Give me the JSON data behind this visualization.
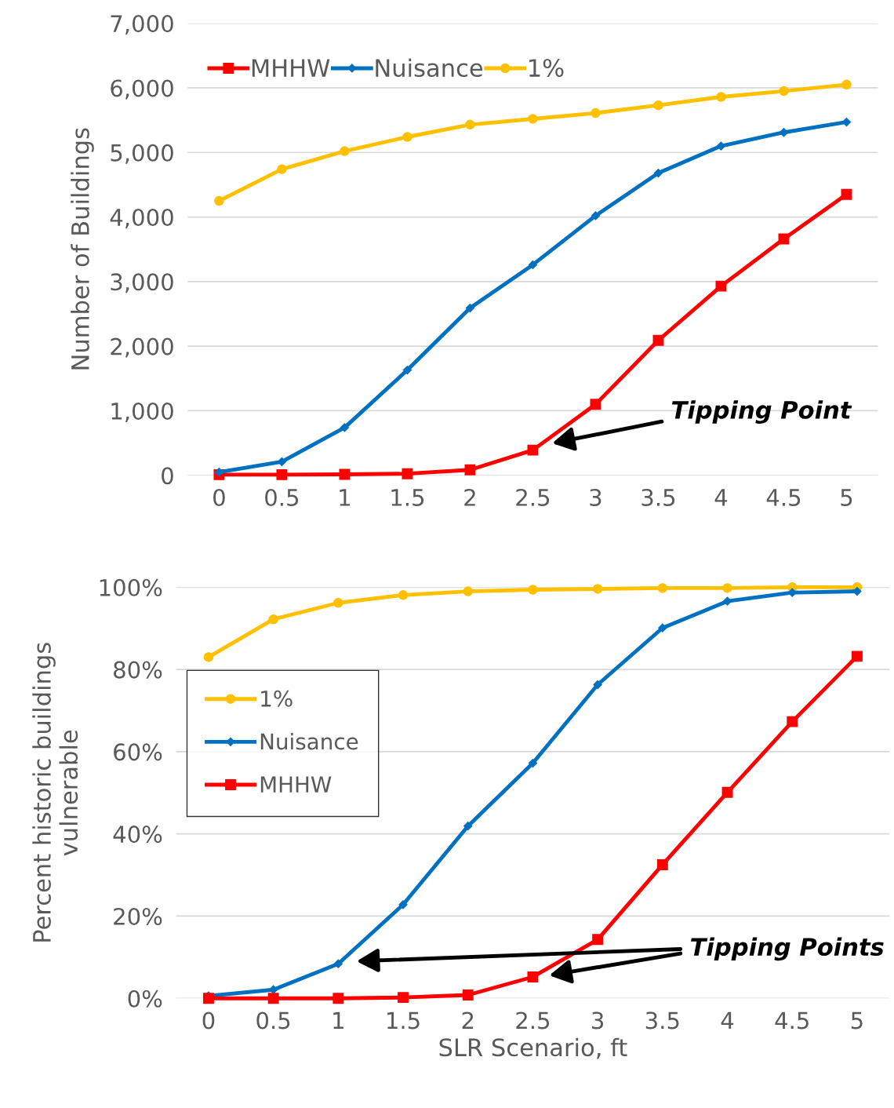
{
  "chart_data": [
    {
      "type": "line",
      "ylabel": "Number of Buildings",
      "categories": [
        "0",
        "0.5",
        "1",
        "1.5",
        "2",
        "2.5",
        "3",
        "3.5",
        "4",
        "4.5",
        "5"
      ],
      "series": [
        {
          "name": "MHHW",
          "color": "#ff0000",
          "marker": "square",
          "values": [
            10,
            10,
            15,
            25,
            85,
            390,
            1100,
            2090,
            2930,
            3660,
            4350
          ]
        },
        {
          "name": "Nuisance",
          "color": "#0070c0",
          "marker": "diamond",
          "values": [
            50,
            210,
            740,
            1630,
            2590,
            3260,
            4020,
            4680,
            5100,
            5310,
            5470
          ]
        },
        {
          "name": "1%",
          "color": "#ffc000",
          "marker": "circle",
          "values": [
            4250,
            4740,
            5020,
            5240,
            5430,
            5520,
            5610,
            5730,
            5860,
            5950,
            6050
          ]
        }
      ],
      "ylim": [
        0,
        7000
      ],
      "yticks": [
        {
          "value": 0,
          "label": "0"
        },
        {
          "value": 1000,
          "label": "1,000"
        },
        {
          "value": 2000,
          "label": "2,000"
        },
        {
          "value": 3000,
          "label": "3,000"
        },
        {
          "value": 4000,
          "label": "4,000"
        },
        {
          "value": 5000,
          "label": "5,000"
        },
        {
          "value": 6000,
          "label": "6,000"
        },
        {
          "value": 7000,
          "label": "7,000"
        }
      ],
      "grid": "y",
      "legend": "top left",
      "annotations": [
        "Tipping Point"
      ]
    },
    {
      "type": "line",
      "xlabel": "SLR Scenario, ft",
      "ylabel": "Percent historic buildings\nvulnerable",
      "categories": [
        "0",
        "0.5",
        "1",
        "1.5",
        "2",
        "2.5",
        "3",
        "3.5",
        "4",
        "4.5",
        "5"
      ],
      "series": [
        {
          "name": "1%",
          "color": "#ffc000",
          "marker": "circle",
          "values": [
            83,
            92.2,
            96.2,
            98.1,
            99,
            99.4,
            99.6,
            99.8,
            99.8,
            100,
            100
          ]
        },
        {
          "name": "Nuisance",
          "color": "#0070c0",
          "marker": "diamond",
          "values": [
            0.6,
            2.1,
            8.4,
            22.8,
            41.9,
            57.2,
            76.3,
            90.1,
            96.6,
            98.7,
            99
          ]
        },
        {
          "name": "MHHW",
          "color": "#ff0000",
          "marker": "square",
          "values": [
            0,
            0,
            0,
            0.2,
            0.8,
            5.2,
            14.3,
            32.5,
            50.1,
            67.3,
            83.2
          ]
        }
      ],
      "ylim": [
        0,
        100
      ],
      "yticks": [
        {
          "value": 0,
          "label": "0%"
        },
        {
          "value": 20,
          "label": "20%"
        },
        {
          "value": 40,
          "label": "40%"
        },
        {
          "value": 60,
          "label": "60%"
        },
        {
          "value": 80,
          "label": "80%"
        },
        {
          "value": 100,
          "label": "100%"
        }
      ],
      "grid": "y",
      "legend": "left",
      "annotations": [
        "Tipping Points"
      ]
    }
  ]
}
